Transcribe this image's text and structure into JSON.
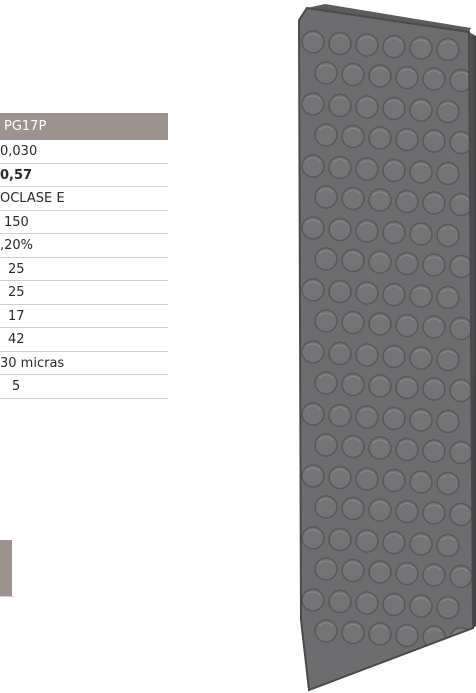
{
  "spec_table": {
    "header": "PG17P",
    "rows": [
      {
        "value": "0,030",
        "bold": false,
        "indent": 0
      },
      {
        "value": "0,57",
        "bold": true,
        "indent": 0
      },
      {
        "value": "OCLASE E",
        "bold": false,
        "indent": 0
      },
      {
        "value": "150",
        "bold": false,
        "indent": 1
      },
      {
        "value": ",20%",
        "bold": false,
        "indent": 0
      },
      {
        "value": "25",
        "bold": false,
        "indent": 2
      },
      {
        "value": "25",
        "bold": false,
        "indent": 2
      },
      {
        "value": "17",
        "bold": false,
        "indent": 2
      },
      {
        "value": "42",
        "bold": false,
        "indent": 2
      },
      {
        "value": "30 micras",
        "bold": false,
        "indent": 0
      },
      {
        "value": "5",
        "bold": false,
        "indent": 3
      }
    ]
  },
  "colors": {
    "header_bg": "#9e928e",
    "panel_fill": "#6d6d6f",
    "panel_edge": "#4a4a4c",
    "row_border": "#cfcfcf"
  },
  "product_image": {
    "icon": "insulation-panel-icon"
  }
}
